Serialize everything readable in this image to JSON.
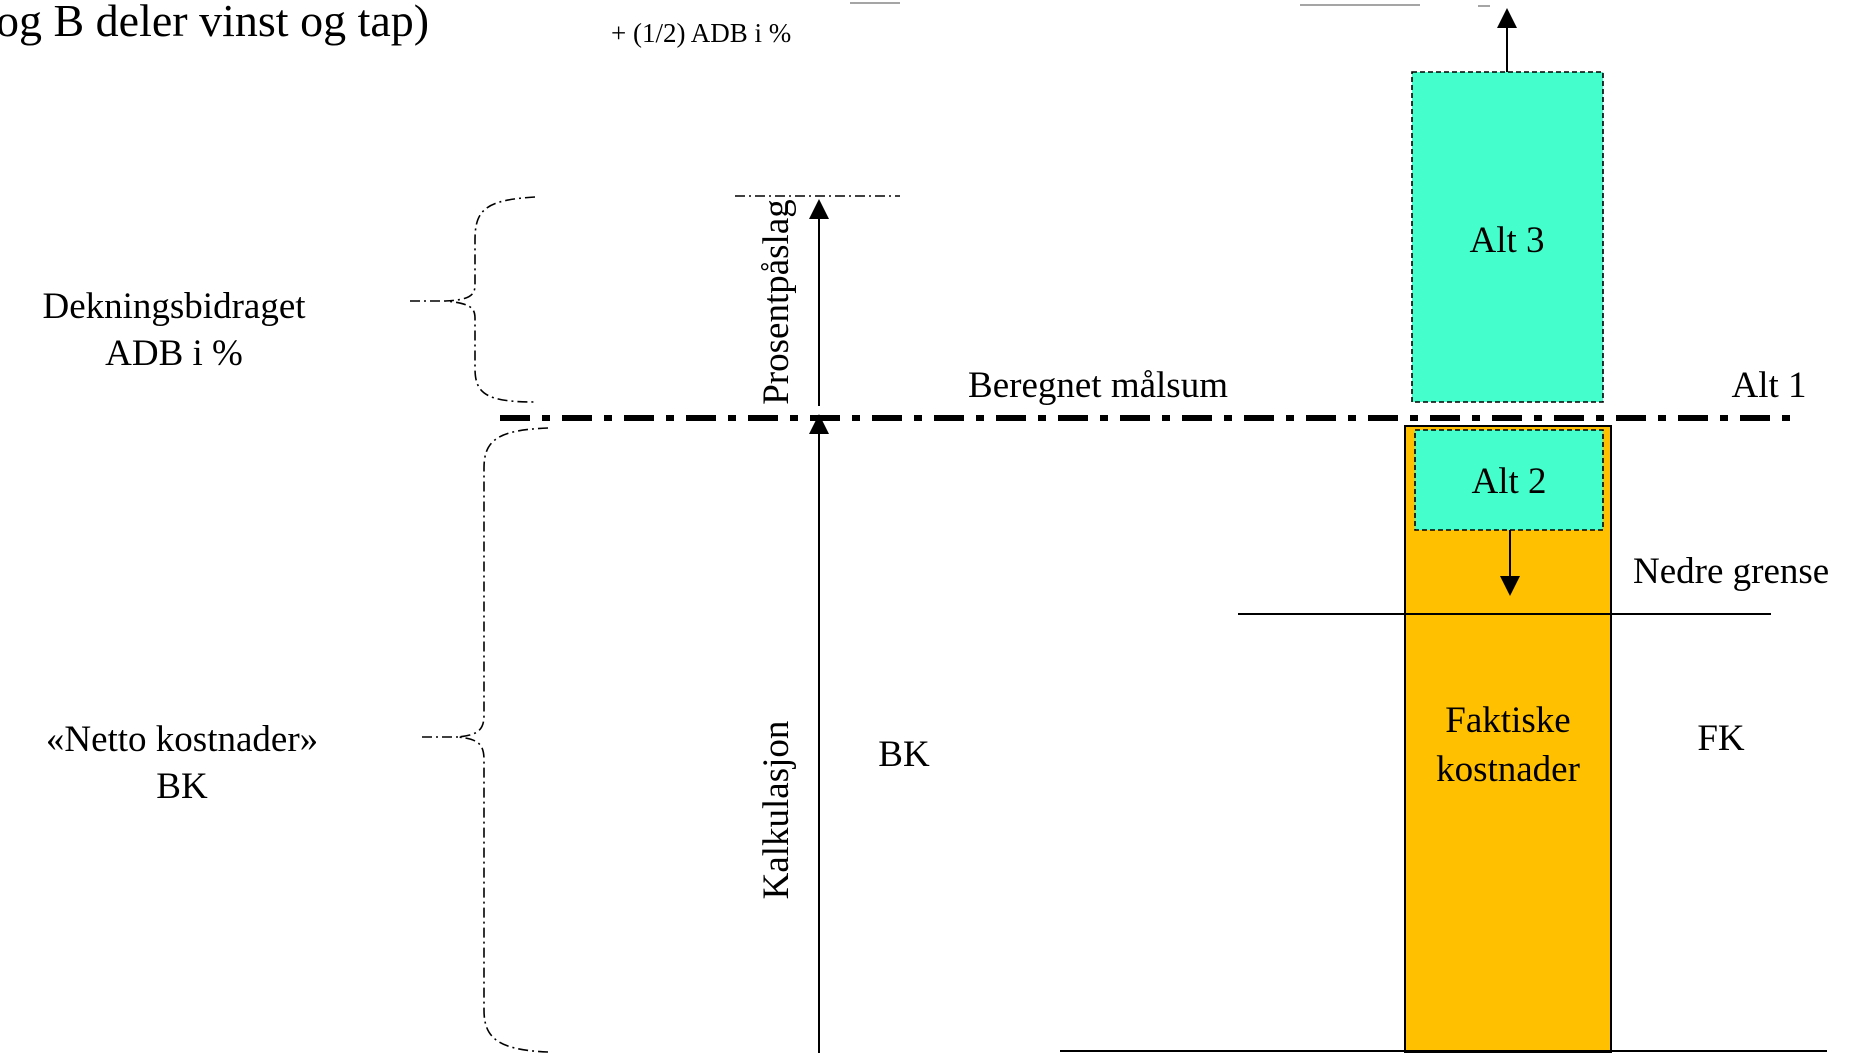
{
  "header": {
    "title_fragment": "og B deler vinst og tap)",
    "formula_fragment": "+ (1/2) ADB i %"
  },
  "left_labels": {
    "contribution_line1": "Dekningsbidraget",
    "contribution_line2": "ADB i %",
    "net_costs_line1": "«Netto kostnader»",
    "net_costs_line2": "BK"
  },
  "axis_labels": {
    "markup": "Prosentpåslag",
    "calculation": "Kalkulasjon",
    "bk": "BK"
  },
  "lines": {
    "target_sum": "Beregnet målsum",
    "alt1": "Alt 1",
    "lower_limit": "Nedre grense"
  },
  "boxes": {
    "alt3": "Alt 3",
    "alt2": "Alt 2",
    "actual_costs_line1": "Faktiske",
    "actual_costs_line2": "kostnader",
    "fk": "FK"
  },
  "colors": {
    "alt_fill": "#44FFCC",
    "actual_costs_fill": "#FFC000",
    "ink": "#000000"
  }
}
